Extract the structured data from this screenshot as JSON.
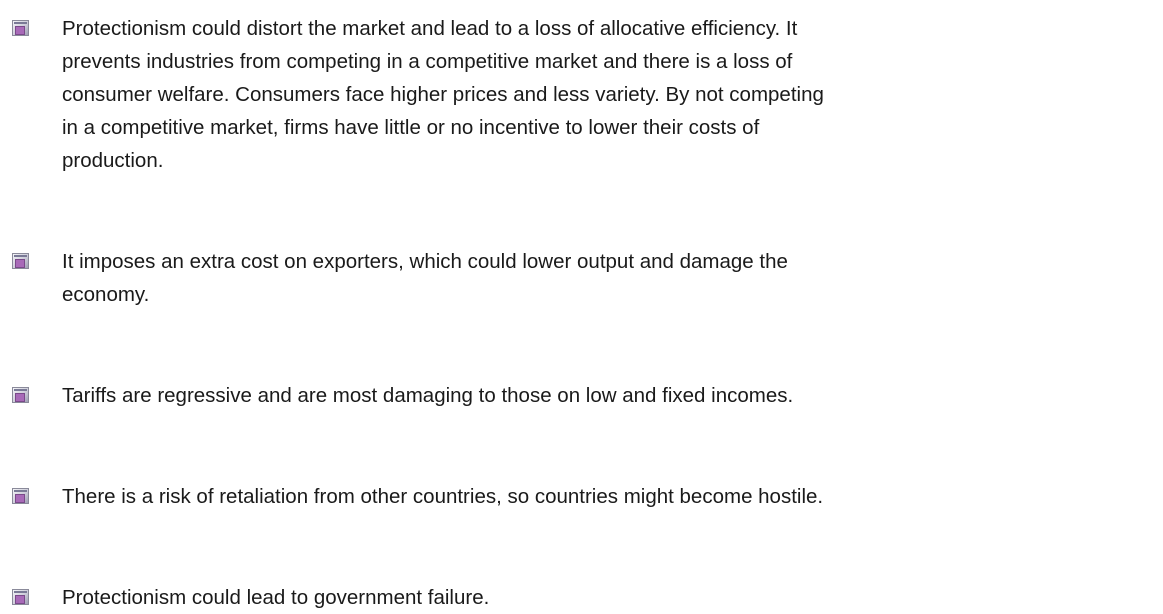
{
  "list": {
    "items": [
      [
        "Protectionism could distort the market and lead to a loss of allocative efficiency. It",
        "prevents industries from competing in a competitive market and there is a loss of",
        "consumer welfare. Consumers face higher prices and less variety. By not competing",
        "in a competitive market, firms have little or no incentive to lower their costs of",
        "production."
      ],
      [
        "It imposes an extra cost on exporters, which could lower output and damage the",
        "economy."
      ],
      [
        "Tariffs are regressive and are most damaging to those on low and fixed incomes."
      ],
      [
        "There is a risk of retaliation from other countries, so countries might become hostile."
      ],
      [
        "Protectionism could lead to government failure."
      ]
    ]
  }
}
